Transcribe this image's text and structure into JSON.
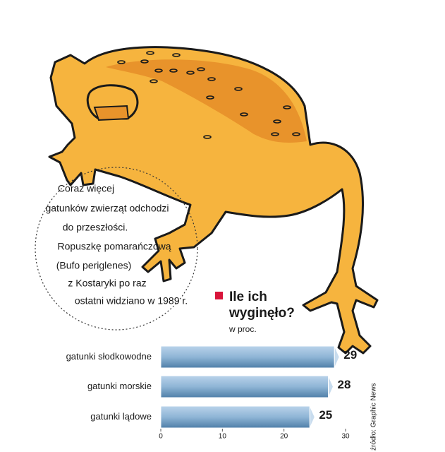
{
  "chart_data": {
    "type": "bar",
    "orientation": "horizontal",
    "title": "Ile ich wyginęło?",
    "subtitle": "w proc.",
    "annotation": [
      "Coraz więcej",
      "gatunków zwierząt odchodzi",
      "do przeszłości.",
      "Ropuszkę pomarańczową",
      "(Bufo periglenes)",
      "z Kostaryki po raz",
      "ostatni widziano w 1989 r."
    ],
    "source": "źródło: Graphic News",
    "categories": [
      "gatunki słodkowodne",
      "gatunki morskie",
      "gatunki lądowe"
    ],
    "values": [
      29,
      28,
      25
    ],
    "color": "#8fb5d6",
    "xlim": [
      0,
      30
    ],
    "xticks": [
      0,
      10,
      20,
      30
    ]
  }
}
